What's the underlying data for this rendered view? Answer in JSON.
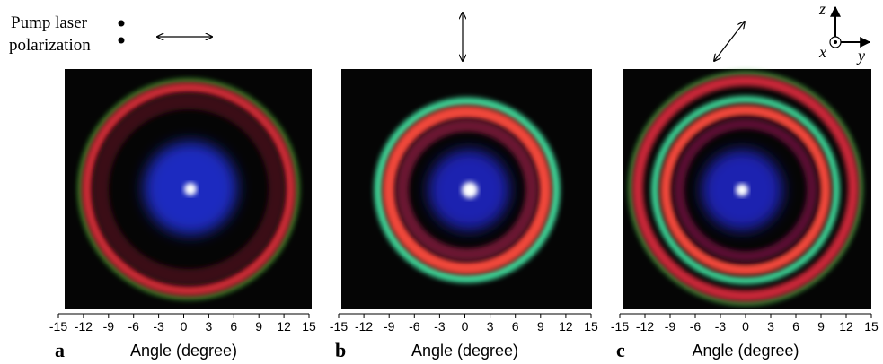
{
  "legend": {
    "line1": "Pump laser",
    "line2": "polarization"
  },
  "axes_labels": {
    "z": "z",
    "x": "x",
    "y": "y"
  },
  "panels": [
    {
      "label": "a",
      "xlabel": "Angle (degree)",
      "xlim": [
        -15,
        15
      ],
      "xticks": [
        -15,
        -12,
        -9,
        -6,
        -3,
        0,
        3,
        6,
        9,
        12,
        15
      ]
    },
    {
      "label": "b",
      "xlabel": "Angle (degree)",
      "xlim": [
        -15,
        15
      ],
      "xticks": [
        -15,
        -12,
        -9,
        -6,
        -3,
        0,
        3,
        6,
        9,
        12,
        15
      ]
    },
    {
      "label": "c",
      "xlabel": "Angle (degree)",
      "xlim": [
        -15,
        15
      ],
      "xticks": [
        -15,
        -12,
        -9,
        -6,
        -3,
        0,
        3,
        6,
        9,
        12,
        15
      ]
    }
  ]
}
